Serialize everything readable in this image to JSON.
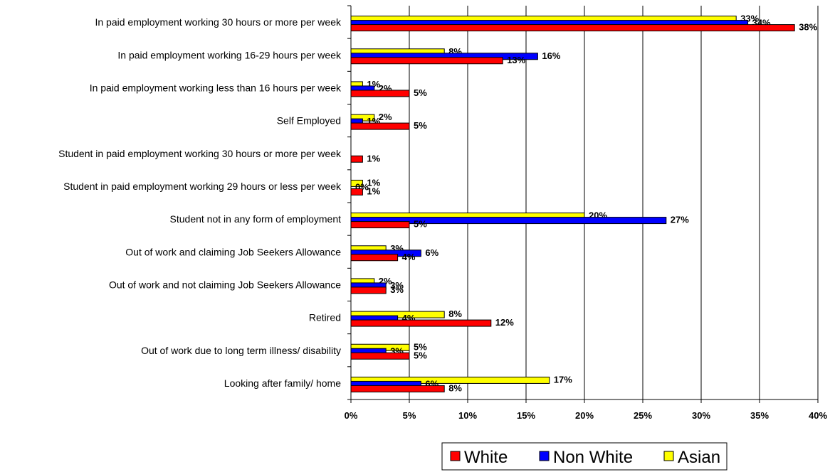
{
  "chart_data": {
    "type": "bar",
    "orientation": "horizontal",
    "categories": [
      "In paid employment working 30 hours or more per week",
      "In paid employment working 16-29 hours per week",
      "In paid employment working less than 16 hours per week",
      "Self Employed",
      "Student in paid employment working 30 hours or more per week",
      "Student in paid employment working 29 hours or less per week",
      "Student not in any form of employment",
      "Out of work and claiming Job Seekers Allowance",
      "Out of work and not claiming Job Seekers Allowance",
      "Retired",
      "Out of work due to long term illness/ disability",
      "Looking after family/ home"
    ],
    "series": [
      {
        "name": "Asian",
        "color": "#ffff00",
        "values": [
          33,
          8,
          1,
          2,
          null,
          1,
          20,
          3,
          2,
          8,
          5,
          17
        ],
        "labels": [
          "33%",
          "8%",
          "1%",
          "2%",
          "",
          "1%",
          "20%",
          "3%",
          "2%",
          "8%",
          "5%",
          "17%"
        ]
      },
      {
        "name": "Non White",
        "color": "#0000ff",
        "values": [
          34,
          16,
          2,
          1,
          null,
          0,
          27,
          6,
          3,
          4,
          3,
          6
        ],
        "labels": [
          "34%",
          "16%",
          "2%",
          "1%",
          "",
          "0%",
          "27%",
          "6%",
          "3%",
          "4%",
          "3%",
          "6%"
        ]
      },
      {
        "name": "White",
        "color": "#ff0000",
        "values": [
          38,
          13,
          5,
          5,
          1,
          1,
          5,
          4,
          3,
          12,
          5,
          8
        ],
        "labels": [
          "38%",
          "13%",
          "5%",
          "5%",
          "1%",
          "1%",
          "5%",
          "4%",
          "3%",
          "12%",
          "5%",
          "8%"
        ]
      }
    ],
    "xlim": [
      0,
      40
    ],
    "xticks": [
      "0%",
      "5%",
      "10%",
      "15%",
      "20%",
      "25%",
      "30%",
      "35%",
      "40%"
    ],
    "grid": true,
    "legend": {
      "position": "bottom-right",
      "order": [
        "White",
        "Non White",
        "Asian"
      ]
    }
  }
}
